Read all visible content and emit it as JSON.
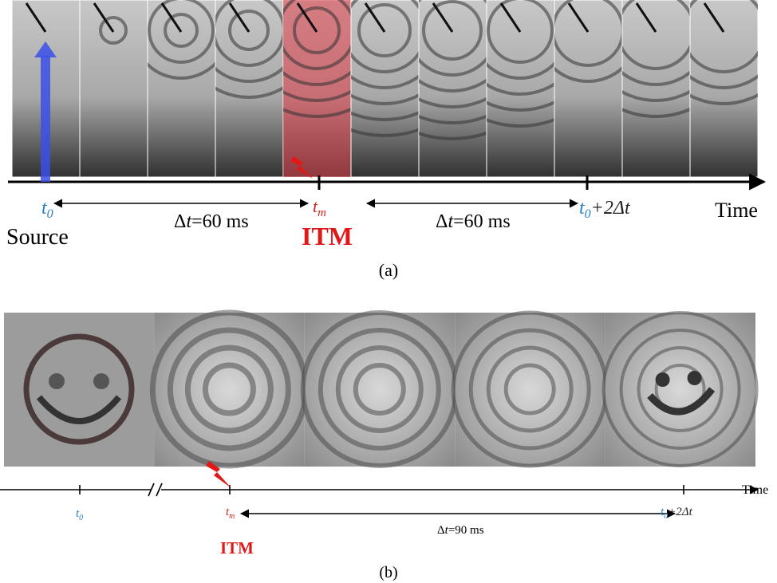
{
  "panel_a": {
    "source_time": {
      "t": "t",
      "sub": "0"
    },
    "source_label": "Source",
    "interval_1": {
      "delta": "Δ",
      "t": "t",
      "rest": "=60 ms"
    },
    "itm_time": {
      "t": "t",
      "sub": "m"
    },
    "itm_label": "ITM",
    "interval_2": {
      "delta": "Δ",
      "t": "t",
      "rest": "=60 ms"
    },
    "end_time": {
      "t": "t",
      "sub": "0",
      "rest": "+2Δt"
    },
    "axis_label": "Time",
    "caption": "(a)"
  },
  "panel_b": {
    "source_time": {
      "t": "t",
      "sub": "0"
    },
    "itm_time": {
      "t": "t",
      "sub": "m"
    },
    "itm_label": "ITM",
    "interval": {
      "delta": "Δ",
      "t": "t",
      "rest": "=90 ms"
    },
    "end_time": {
      "t": "t",
      "sub": "0",
      "rest": "+2Δt"
    },
    "axis_label": "Time",
    "caption": "(b)"
  }
}
